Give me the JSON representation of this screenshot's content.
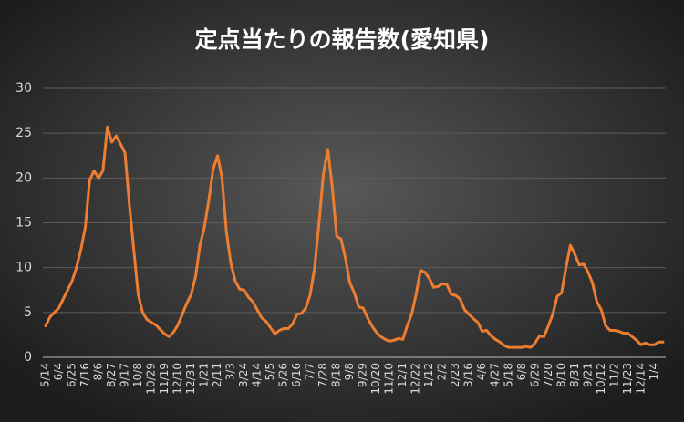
{
  "chart_data": {
    "type": "line",
    "title": "定点当たりの報告数(愛知県)",
    "categories": [
      "5/14",
      null,
      null,
      "6/4",
      null,
      null,
      "6/25",
      null,
      null,
      "7/16",
      null,
      null,
      "8/6",
      null,
      null,
      "8/27",
      null,
      null,
      "9/17",
      null,
      null,
      "10/8",
      null,
      null,
      "10/29",
      null,
      null,
      "11/19",
      null,
      null,
      "12/10",
      null,
      null,
      "12/31",
      null,
      null,
      "1/21",
      null,
      null,
      "2/11",
      null,
      null,
      "3/3",
      null,
      null,
      "3/24",
      null,
      null,
      "4/14",
      null,
      null,
      "5/5",
      null,
      null,
      "5/26",
      null,
      null,
      "6/16",
      null,
      null,
      "7/7",
      null,
      null,
      "7/28",
      null,
      null,
      "8/18",
      null,
      null,
      "9/8",
      null,
      null,
      "9/29",
      null,
      null,
      "10/20",
      null,
      null,
      "11/10",
      null,
      null,
      "12/1",
      null,
      null,
      "12/22",
      null,
      null,
      "1/12",
      null,
      null,
      "2/2",
      null,
      null,
      "2/23",
      null,
      null,
      "3/16",
      null,
      null,
      "4/6",
      null,
      null,
      "4/27",
      null,
      null,
      "5/18",
      null,
      null,
      "6/8",
      null,
      null,
      "6/29",
      null,
      null,
      "7/20",
      null,
      null,
      "8/10",
      null,
      null,
      "8/31",
      null,
      null,
      "9/21",
      null,
      null,
      "10/12",
      null,
      null,
      "11/2",
      null,
      null,
      "11/23",
      null,
      null,
      "12/14",
      null,
      null,
      "1/4",
      null,
      null
    ],
    "values": [
      3.5,
      4.5,
      5,
      5.5,
      6.5,
      7.5,
      8.5,
      10,
      12,
      14.5,
      19.8,
      20.8,
      20,
      20.8,
      25.7,
      24,
      24.7,
      23.8,
      22.8,
      17,
      12,
      7,
      5,
      4.2,
      3.9,
      3.6,
      3.1,
      2.6,
      2.3,
      2.8,
      3.6,
      4.8,
      6,
      7,
      9,
      12.5,
      14.5,
      17.5,
      21,
      22.5,
      20,
      14,
      10.5,
      8.5,
      7.6,
      7.5,
      6.7,
      6.2,
      5.3,
      4.4,
      4,
      3.3,
      2.6,
      3,
      3.2,
      3.2,
      3.7,
      4.8,
      4.9,
      5.5,
      7,
      10,
      15,
      20.5,
      23.2,
      19,
      13.5,
      13.2,
      11,
      8.3,
      7.2,
      5.6,
      5.5,
      4.4,
      3.5,
      2.8,
      2.3,
      2,
      1.8,
      1.9,
      2.1,
      2,
      3.5,
      4.8,
      7,
      9.7,
      9.5,
      8.8,
      7.8,
      7.9,
      8.2,
      8.1,
      7,
      6.9,
      6.5,
      5.3,
      4.8,
      4.3,
      3.9,
      2.9,
      3,
      2.4,
      2,
      1.7,
      1.3,
      1.1,
      1.1,
      1.1,
      1.1,
      1.2,
      1.1,
      1.6,
      2.4,
      2.3,
      3.5,
      4.8,
      6.8,
      7.2,
      10,
      12.5,
      11.5,
      10.3,
      10.4,
      9.5,
      8.3,
      6.2,
      5.3,
      3.5,
      3,
      3,
      2.9,
      2.7,
      2.7,
      2.3,
      1.9,
      1.4,
      1.6,
      1.4,
      1.4,
      1.7,
      1.7
    ],
    "color": "#ed7d31",
    "ylim": [
      0,
      30
    ],
    "yticks": [
      0,
      5,
      10,
      15,
      20,
      25,
      30
    ],
    "grid": true
  }
}
